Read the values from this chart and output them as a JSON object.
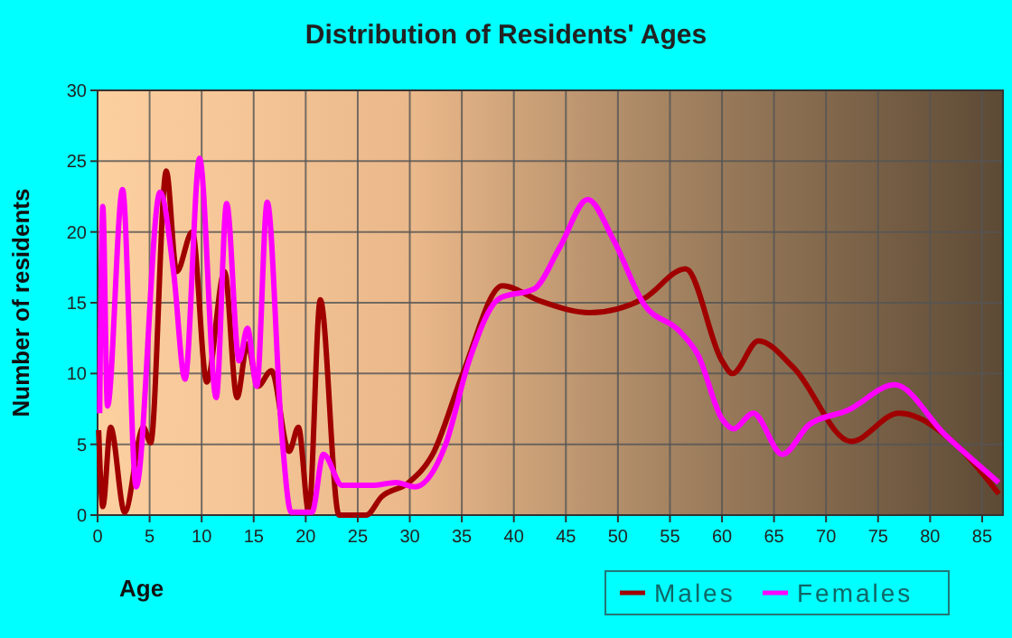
{
  "chart_data": {
    "type": "line",
    "title": "Distribution of Residents' Ages",
    "xlabel": "Age",
    "ylabel": "Number of residents",
    "xlim": [
      0,
      87
    ],
    "xticks": [
      0,
      5,
      10,
      15,
      20,
      25,
      30,
      35,
      40,
      45,
      50,
      55,
      60,
      65,
      70,
      75,
      80,
      85
    ],
    "ylim": [
      0,
      30
    ],
    "yticks": [
      0,
      5,
      10,
      15,
      20,
      25,
      30
    ],
    "grid": true,
    "legend": "bottom",
    "line_style": "solid",
    "series": [
      {
        "name": "Males",
        "color": "#a00000",
        "x": [
          0.1,
          0.5,
          1.25,
          2.6,
          4.4,
          5.1,
          6.6,
          7.6,
          9.1,
          10.5,
          12.2,
          13.4,
          14.4,
          15.4,
          16.7,
          18.4,
          19.3,
          20.3,
          21.4,
          23.2,
          25.8,
          27.3,
          29.9,
          32.2,
          35.1,
          38.9,
          42.6,
          47.3,
          52.5,
          56.5,
          60,
          61,
          63.5,
          66.9,
          72.4,
          77,
          82.6,
          86.6
        ],
        "values": [
          6,
          0.6,
          6.2,
          0.2,
          6.2,
          5.1,
          24.3,
          17.2,
          20,
          9.4,
          17.2,
          8.3,
          12.1,
          9.1,
          10.2,
          4.5,
          6.2,
          0.2,
          15.2,
          0,
          0,
          1.3,
          2.3,
          4.3,
          10,
          16.2,
          15.1,
          14.3,
          15.3,
          17.4,
          10.9,
          10,
          12.3,
          10.4,
          5.2,
          7.2,
          4.9,
          1.5
        ]
      },
      {
        "name": "Females",
        "color": "#ff00ff",
        "x": [
          0.2,
          0.5,
          0.95,
          2.4,
          3.7,
          6,
          7.3,
          8.4,
          9.8,
          11.4,
          12.4,
          13.6,
          14.4,
          15.3,
          16.3,
          17.7,
          18.6,
          20.6,
          21.7,
          23.5,
          26.4,
          28.7,
          30.5,
          33.4,
          35.7,
          38.6,
          42,
          44.4,
          47.1,
          49.6,
          52.5,
          55.9,
          57.7,
          60,
          61.1,
          63,
          65.8,
          68.4,
          72.1,
          76.6,
          81.4,
          86.6
        ],
        "values": [
          7.2,
          21.8,
          7.7,
          23,
          2,
          22.8,
          17.2,
          9.6,
          25.2,
          8.3,
          22,
          10.9,
          13.2,
          9.1,
          22.1,
          5.7,
          0.2,
          0.2,
          4.3,
          2.1,
          2.1,
          2.3,
          2,
          4.9,
          10.9,
          15.3,
          16,
          18.9,
          22.3,
          19.4,
          14.9,
          13,
          11.3,
          6.8,
          6.1,
          7.2,
          4.3,
          6.4,
          7.4,
          9.2,
          5.7,
          2.3
        ]
      }
    ]
  }
}
